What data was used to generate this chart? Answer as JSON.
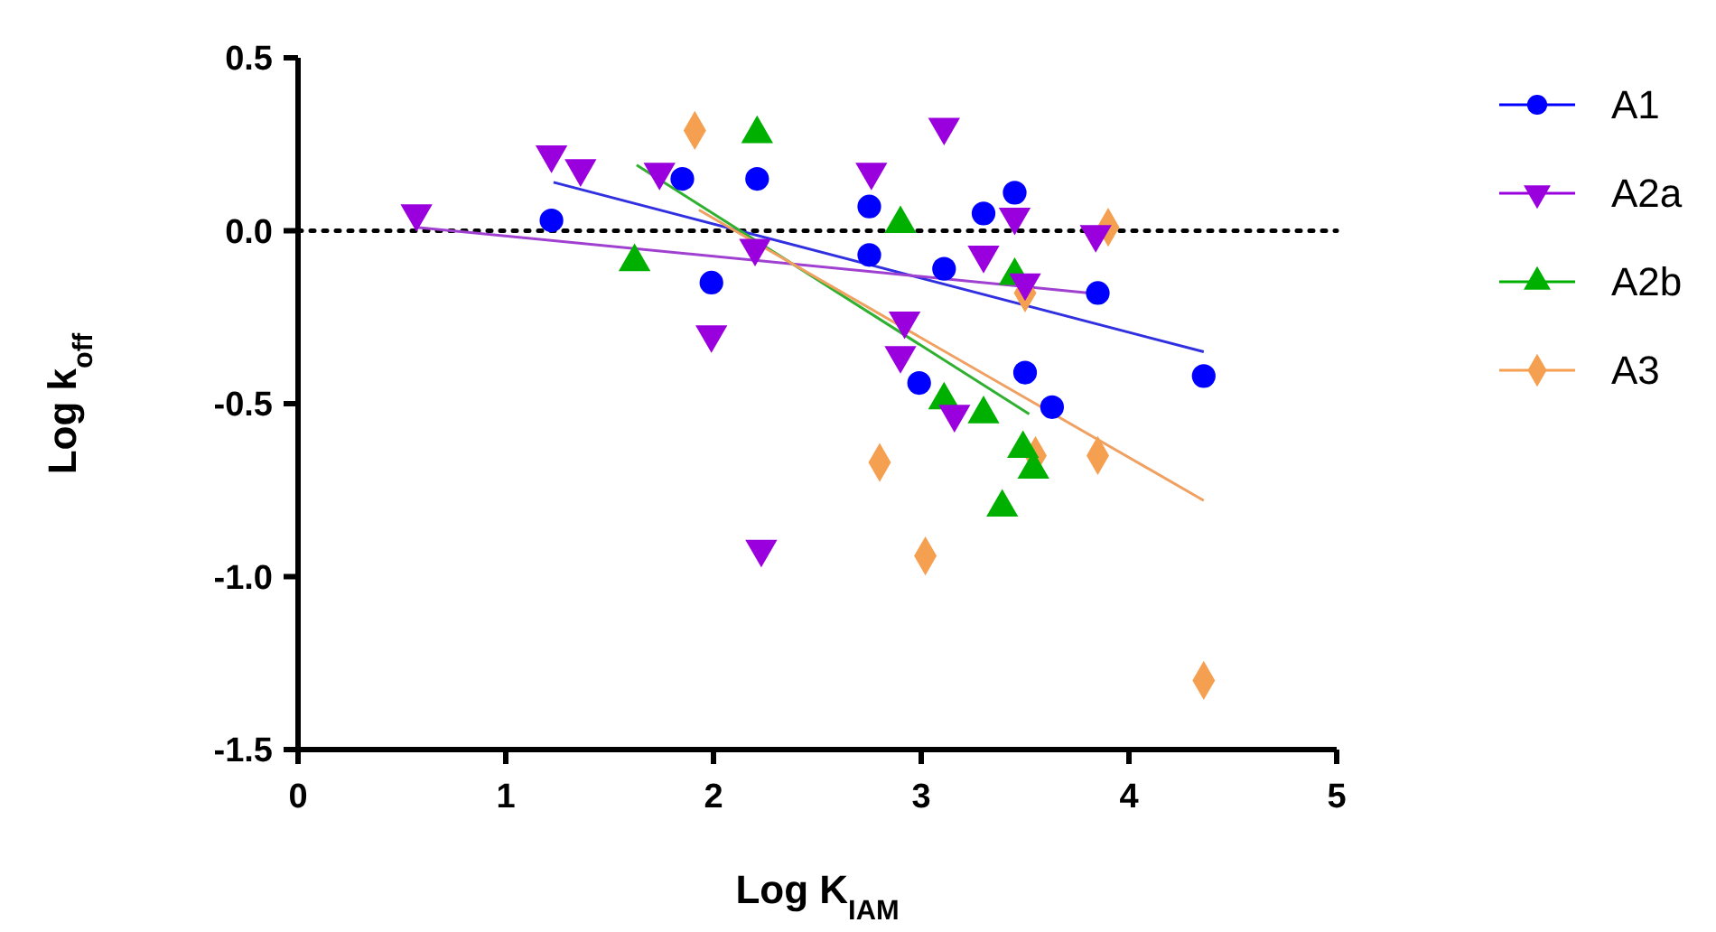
{
  "chart_data": {
    "type": "scatter",
    "xlabel": "Log K$_{IAM}$",
    "ylabel": "Log k$_{off}$",
    "xlim": [
      0,
      5
    ],
    "xticks": [
      0,
      1,
      2,
      3,
      4,
      5
    ],
    "ylim": [
      -1.5,
      0.5
    ],
    "yticks": [
      {
        "value": 0.5,
        "label": "0.5"
      },
      {
        "value": 0,
        "label": "0.0"
      },
      {
        "value": -0.5,
        "label": "-0.5"
      },
      {
        "value": -1,
        "label": "-1.0"
      },
      {
        "value": -1.5,
        "label": "-1.5"
      }
    ],
    "grid": false,
    "legend": "right",
    "ref_lines": [
      {
        "axis": "y",
        "value": 0,
        "color": "#000000",
        "line_style": "dotted"
      }
    ],
    "series": [
      {
        "name": "A1",
        "color": "#0000ff",
        "marker": "circle",
        "x": [
          1.22,
          1.85,
          2.21,
          1.99,
          2.75,
          3.3,
          3.45,
          2.75,
          3.11,
          3.85,
          2.99,
          3.5,
          3.63,
          4.36
        ],
        "values": [
          0.03,
          0.15,
          0.15,
          -0.15,
          0.07,
          0.05,
          0.11,
          -0.07,
          -0.11,
          -0.18,
          -0.44,
          -0.41,
          -0.51,
          -0.42
        ]
      },
      {
        "name": "A2a",
        "color": "#9900dd",
        "marker": "triangle-down",
        "x": [
          0.57,
          1.22,
          1.36,
          1.74,
          1.99,
          2.2,
          2.23,
          2.76,
          3.11,
          3.45,
          3.84,
          3.3,
          3.5,
          2.92,
          2.9,
          3.16
        ],
        "values": [
          0.05,
          0.22,
          0.18,
          0.17,
          -0.3,
          -0.05,
          -0.92,
          0.17,
          0.3,
          0.04,
          -0.01,
          -0.07,
          -0.15,
          -0.26,
          -0.36,
          -0.53
        ]
      },
      {
        "name": "A2b",
        "color": "#00b000",
        "marker": "triangle",
        "x": [
          1.62,
          2.21,
          2.9,
          3.45,
          3.11,
          3.3,
          3.49,
          3.54,
          3.39
        ],
        "values": [
          -0.09,
          0.28,
          0.02,
          -0.13,
          -0.49,
          -0.53,
          -0.63,
          -0.69,
          -0.8
        ]
      },
      {
        "name": "A3",
        "color": "#f5a050",
        "marker": "diamond",
        "x": [
          1.91,
          3.9,
          3.5,
          2.8,
          3.55,
          3.85,
          3.02,
          4.36
        ],
        "values": [
          0.29,
          0.01,
          -0.18,
          -0.67,
          -0.65,
          -0.65,
          -0.94,
          -1.3
        ]
      },
      {
        "type": "line",
        "color": "#3030e0",
        "x": [
          1.23,
          4.36
        ],
        "values": [
          0.14,
          -0.35
        ]
      },
      {
        "type": "line",
        "color": "#a040d0",
        "x": [
          0.57,
          3.81
        ],
        "values": [
          0.01,
          -0.18
        ]
      },
      {
        "type": "line",
        "color": "#30b030",
        "x": [
          1.63,
          3.52
        ],
        "values": [
          0.19,
          -0.53
        ]
      },
      {
        "type": "line",
        "color": "#f0a060",
        "x": [
          1.93,
          4.36
        ],
        "values": [
          0.06,
          -0.78
        ]
      }
    ]
  }
}
